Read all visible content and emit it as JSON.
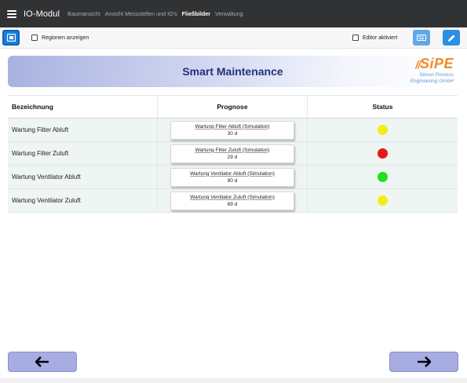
{
  "topbar": {
    "app_title": "IO-Modul",
    "menu_icon": "hamburger-menu-icon",
    "nav": [
      {
        "label": "Baumansicht",
        "active": false
      },
      {
        "label": "Ansicht Messstellen und IO's",
        "active": false
      },
      {
        "label": "Fließbilder",
        "active": true
      },
      {
        "label": "Verwaltung",
        "active": false
      }
    ]
  },
  "toolbar": {
    "regions_label": "Regionen anzeigen",
    "regions_checked": false,
    "editor_label": "Editor aktiviert",
    "editor_checked": false,
    "icons": [
      "home-icon",
      "keyboard-icon",
      "pencil-icon"
    ]
  },
  "banner": {
    "title": "Smart Maintenance",
    "logo_text": "SiPE",
    "logo_sub1": "Simon Process",
    "logo_sub2": "Engineering GmbH"
  },
  "table": {
    "headers": [
      "Bezeichnung",
      "Prognose",
      "Status"
    ],
    "rows": [
      {
        "name": "Wartung Filter Abluft",
        "prog_name": "Wartung Filter Abluft (Simulation)",
        "prog_value": "30 d",
        "status": "yellow"
      },
      {
        "name": "Wartung Filter Zuluft",
        "prog_name": "Wartung Filter Zuluft (Simulation)",
        "prog_value": "29 d",
        "status": "red"
      },
      {
        "name": "Wartung Ventilator Abluft",
        "prog_name": "Wartung Ventilator Abluft (Simulation)",
        "prog_value": "90 d",
        "status": "green"
      },
      {
        "name": "Wartung Ventilator Zuluft",
        "prog_name": "Wartung Ventilator Zuluft (Simulation)",
        "prog_value": "89 d",
        "status": "yellow"
      }
    ]
  },
  "colors": {
    "yellow": "#f2ee12",
    "red": "#e8171b",
    "green": "#1fe01f",
    "nav_bg": "#303234",
    "accent": "#1c8ee6",
    "banner_title": "#25307a",
    "logo_orange": "#f08c28",
    "logo_blue": "#5a9bd8"
  },
  "footer": {
    "back_icon": "arrow-left-icon",
    "forward_icon": "arrow-right-icon"
  }
}
